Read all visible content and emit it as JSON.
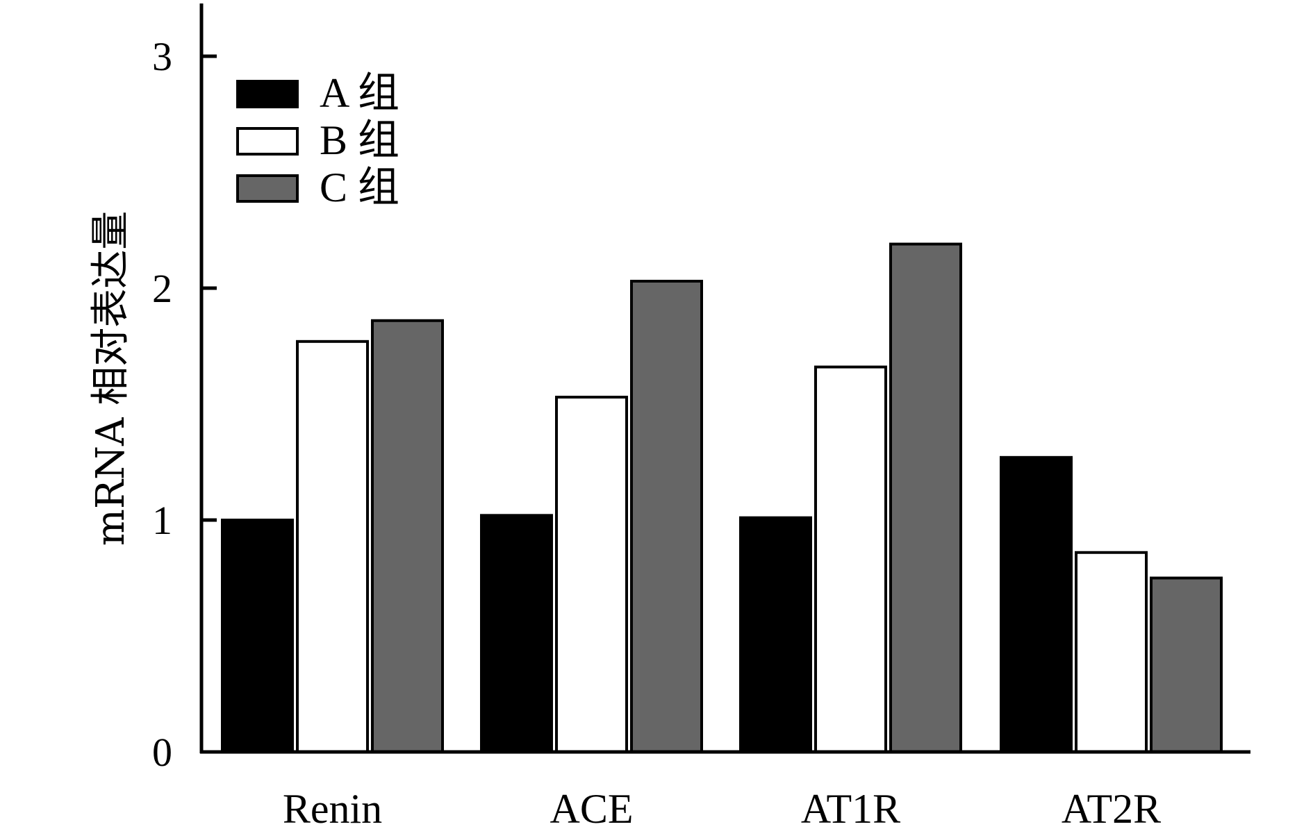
{
  "chart_data": {
    "type": "bar",
    "title": "",
    "xlabel": "",
    "ylabel": "mRNA 相对表达量",
    "ylim": [
      0,
      3.2
    ],
    "yticks": [
      "0",
      "1",
      "2",
      "3"
    ],
    "grid": false,
    "legend_position": "top-left",
    "categories": [
      "Renin",
      "ACE",
      "AT1R",
      "AT2R"
    ],
    "series": [
      {
        "name": "A 组",
        "color": "#000000",
        "values": [
          1.0,
          1.02,
          1.01,
          1.27
        ]
      },
      {
        "name": "B 组",
        "color": "#ffffff",
        "values": [
          1.77,
          1.53,
          1.66,
          0.86
        ]
      },
      {
        "name": "C 组",
        "color": "#666666",
        "values": [
          1.86,
          2.03,
          2.19,
          0.75
        ]
      }
    ]
  }
}
